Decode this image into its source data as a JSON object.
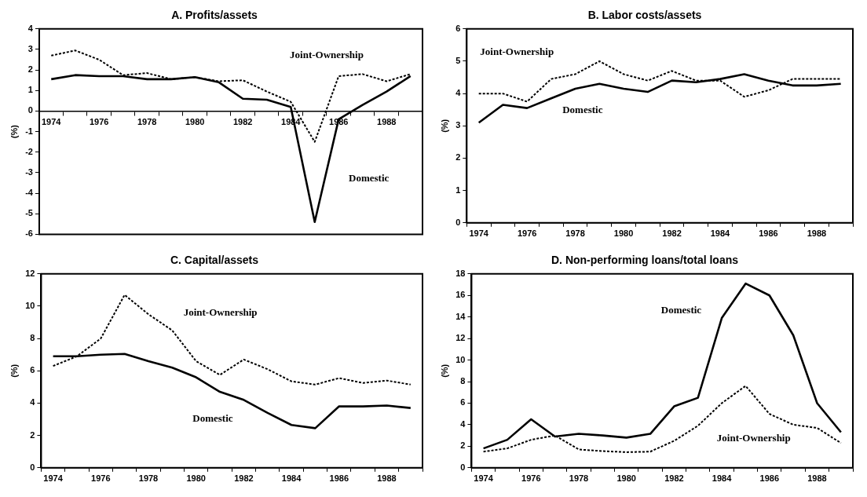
{
  "chart_data": [
    {
      "type": "line",
      "title": "A. Profits/assets",
      "ylabel": "(%)",
      "categories": [
        "1974",
        null,
        "1976",
        null,
        "1978",
        null,
        "1980",
        null,
        "1982",
        null,
        "1984",
        null,
        "1986",
        null,
        "1988",
        null
      ],
      "ylim": [
        -6,
        4
      ],
      "yticks": [
        -6,
        -5,
        -4,
        -3,
        -2,
        -1,
        0,
        1,
        2,
        3,
        4
      ],
      "grid": false,
      "legend": false,
      "marker": "none",
      "series": [
        {
          "name": "Joint-Ownership",
          "color": "#000000",
          "line_style": "dotted",
          "values": [
            2.7,
            2.95,
            2.5,
            1.75,
            1.85,
            1.55,
            1.65,
            1.45,
            1.5,
            0.95,
            0.45,
            -1.5,
            1.7,
            1.8,
            1.45,
            1.8
          ]
        },
        {
          "name": "Domestic",
          "color": "#000000",
          "line_style": "solid",
          "values": [
            1.55,
            1.75,
            1.7,
            1.7,
            1.55,
            1.55,
            1.65,
            1.4,
            0.6,
            0.55,
            0.2,
            -5.4,
            -0.4,
            0.3,
            0.95,
            1.7
          ]
        }
      ]
    },
    {
      "type": "line",
      "title": "B. Labor costs/assets",
      "ylabel": "(%)",
      "categories": [
        "1974",
        null,
        "1976",
        null,
        "1978",
        null,
        "1980",
        null,
        "1982",
        null,
        "1984",
        null,
        "1986",
        null,
        "1988",
        null
      ],
      "ylim": [
        0,
        6
      ],
      "yticks": [
        0,
        1,
        2,
        3,
        4,
        5,
        6
      ],
      "grid": false,
      "legend": false,
      "marker": "none",
      "series": [
        {
          "name": "Joint-Ownership",
          "color": "#000000",
          "line_style": "dotted",
          "values": [
            4.0,
            4.0,
            3.75,
            4.45,
            4.6,
            5.0,
            4.6,
            4.4,
            4.7,
            4.4,
            4.4,
            3.9,
            4.1,
            4.45,
            4.45,
            4.45
          ]
        },
        {
          "name": "Domestic",
          "color": "#000000",
          "line_style": "solid",
          "values": [
            3.1,
            3.65,
            3.55,
            3.85,
            4.15,
            4.3,
            4.15,
            4.05,
            4.4,
            4.35,
            4.45,
            4.6,
            4.4,
            4.25,
            4.25,
            4.3
          ]
        }
      ]
    },
    {
      "type": "line",
      "title": "C. Capital/assets",
      "ylabel": "(%)",
      "categories": [
        "1974",
        null,
        "1976",
        null,
        "1978",
        null,
        "1980",
        null,
        "1982",
        null,
        "1984",
        null,
        "1986",
        null,
        "1988",
        null
      ],
      "ylim": [
        0,
        12
      ],
      "yticks": [
        0,
        2,
        4,
        6,
        8,
        10,
        12
      ],
      "grid": false,
      "legend": false,
      "marker": "none",
      "series": [
        {
          "name": "Joint-Ownership",
          "color": "#000000",
          "line_style": "dotted",
          "values": [
            6.3,
            6.9,
            8.0,
            10.7,
            9.5,
            8.5,
            6.6,
            5.75,
            6.7,
            6.1,
            5.35,
            5.15,
            5.55,
            5.25,
            5.4,
            5.15
          ]
        },
        {
          "name": "Domestic",
          "color": "#000000",
          "line_style": "solid",
          "values": [
            6.9,
            6.9,
            7.0,
            7.05,
            6.6,
            6.2,
            5.6,
            4.7,
            4.2,
            3.4,
            2.65,
            2.45,
            3.8,
            3.8,
            3.85,
            3.7
          ]
        }
      ]
    },
    {
      "type": "line",
      "title": "D. Non-performing loans/total loans",
      "ylabel": "(%)",
      "categories": [
        "1974",
        null,
        "1976",
        null,
        "1978",
        null,
        "1980",
        null,
        "1982",
        null,
        "1984",
        null,
        "1986",
        null,
        "1988",
        null
      ],
      "ylim": [
        0,
        18
      ],
      "yticks": [
        0,
        2,
        4,
        6,
        8,
        10,
        12,
        14,
        16,
        18
      ],
      "grid": false,
      "legend": false,
      "marker": "none",
      "series": [
        {
          "name": "Joint-Ownership",
          "color": "#000000",
          "line_style": "dotted",
          "values": [
            1.5,
            1.8,
            2.6,
            3.0,
            1.7,
            1.55,
            1.45,
            1.5,
            2.5,
            3.9,
            6.0,
            7.6,
            5.0,
            4.0,
            3.7,
            2.3
          ]
        },
        {
          "name": "Domestic",
          "color": "#000000",
          "line_style": "solid",
          "values": [
            1.8,
            2.6,
            4.5,
            2.9,
            3.15,
            3.0,
            2.8,
            3.15,
            5.7,
            6.5,
            13.9,
            17.1,
            16.0,
            12.3,
            6.0,
            3.3
          ]
        }
      ]
    }
  ]
}
